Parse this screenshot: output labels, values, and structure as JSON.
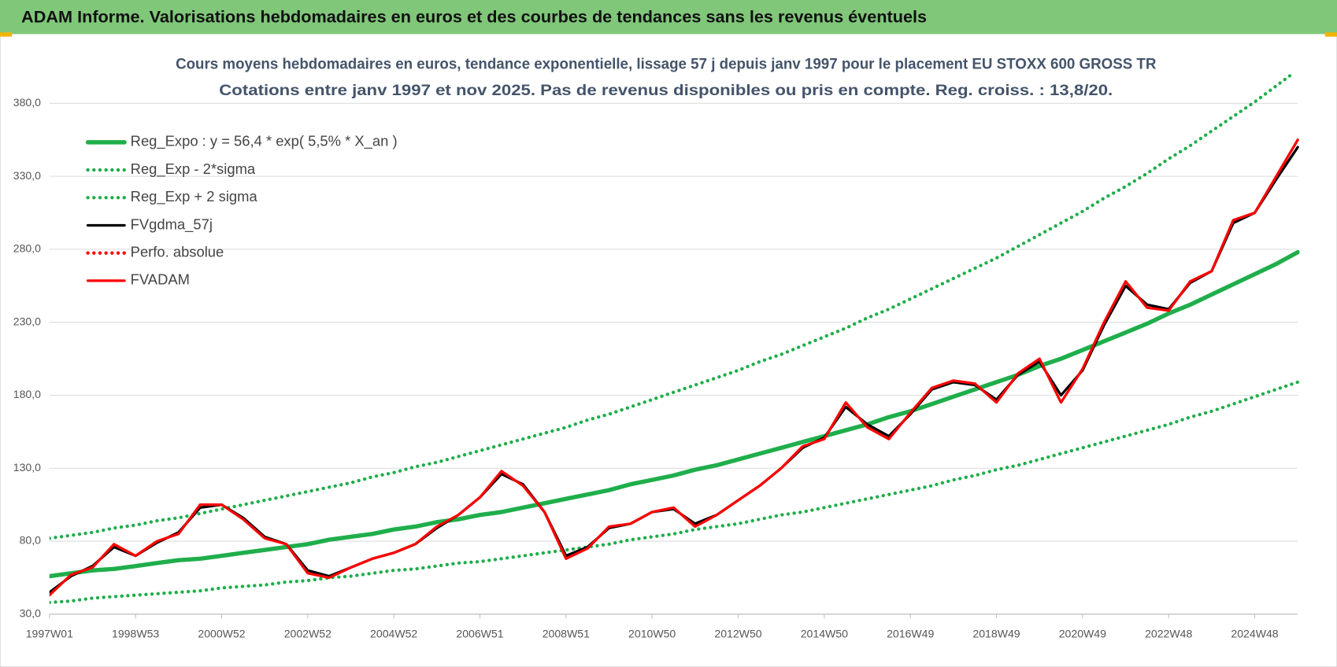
{
  "header": {
    "title": "ADAM Informe. Valorisations hebdomadaires en euros et des courbes de tendances sans les revenus éventuels"
  },
  "chart_data": {
    "type": "line",
    "title": "Cours moyens hebdomadaires en euros, tendance exponentielle, lissage 57 j depuis janv 1997 pour le placement EU STOXX 600 GROSS TR",
    "subtitle": "Cotations entre janv 1997 et nov 2025. Pas de revenus disponibles ou pris en compte. Reg. croiss. : 13,8/20.",
    "categories": [
      "1997W01",
      null,
      null,
      null,
      "1998W53",
      null,
      null,
      null,
      "2000W52",
      null,
      null,
      null,
      "2002W52",
      null,
      null,
      null,
      "2004W52",
      null,
      null,
      null,
      "2006W51",
      null,
      null,
      null,
      "2008W51",
      null,
      null,
      null,
      "2010W50",
      null,
      null,
      null,
      "2012W50",
      null,
      null,
      null,
      "2014W50",
      null,
      null,
      null,
      "2016W49",
      null,
      null,
      null,
      "2018W49",
      null,
      null,
      null,
      "2020W49",
      null,
      null,
      null,
      "2022W48",
      null,
      null,
      null,
      "2024W48",
      null,
      null
    ],
    "ylim": [
      30,
      400
    ],
    "yticks": [
      {
        "value": 30,
        "label": "30,0"
      },
      {
        "value": 80,
        "label": "80,0"
      },
      {
        "value": 130,
        "label": "130,0"
      },
      {
        "value": 180,
        "label": "180,0"
      },
      {
        "value": 230,
        "label": "230,0"
      },
      {
        "value": 280,
        "label": "280,0"
      },
      {
        "value": 330,
        "label": "330,0"
      },
      {
        "value": 380,
        "label": "380,0"
      }
    ],
    "grid": true,
    "legend": "upper left",
    "series": [
      {
        "name": "Reg_Expo : y = 56,4 * exp( 5,5% *  X_an )",
        "color": "#1fae4b",
        "style": "solid",
        "values": [
          56,
          58,
          60,
          61,
          63,
          65,
          67,
          68,
          70,
          72,
          74,
          76,
          78,
          81,
          83,
          85,
          88,
          90,
          93,
          95,
          98,
          100,
          103,
          106,
          109,
          112,
          115,
          119,
          122,
          125,
          129,
          132,
          136,
          140,
          144,
          148,
          152,
          156,
          160,
          165,
          169,
          174,
          179,
          184,
          189,
          194,
          200,
          205,
          211,
          217,
          223,
          229,
          236,
          242,
          249,
          256,
          263,
          270,
          278
        ]
      },
      {
        "name": "Reg_Exp - 2*sigma",
        "color": "#1fae4b",
        "style": "dotted",
        "values": [
          38,
          39,
          41,
          42,
          43,
          44,
          45,
          46,
          48,
          49,
          50,
          52,
          53,
          55,
          56,
          58,
          60,
          61,
          63,
          65,
          66,
          68,
          70,
          72,
          74,
          76,
          78,
          81,
          83,
          85,
          88,
          90,
          92,
          95,
          98,
          100,
          103,
          106,
          109,
          112,
          115,
          118,
          122,
          125,
          129,
          132,
          136,
          140,
          144,
          148,
          152,
          156,
          160,
          165,
          169,
          174,
          179,
          184,
          189
        ]
      },
      {
        "name": "Reg_Exp + 2 sigma",
        "color": "#1fae4b",
        "style": "dotted",
        "values": [
          82,
          84,
          86,
          89,
          91,
          94,
          96,
          99,
          102,
          105,
          108,
          111,
          114,
          117,
          120,
          124,
          127,
          131,
          134,
          138,
          142,
          146,
          150,
          154,
          158,
          163,
          167,
          172,
          177,
          182,
          187,
          192,
          197,
          203,
          208,
          214,
          220,
          226,
          233,
          239,
          246,
          253,
          260,
          267,
          274,
          282,
          290,
          298,
          306,
          315,
          323,
          332,
          342,
          351,
          361,
          371,
          381,
          392,
          403
        ]
      },
      {
        "name": "FVgdma_57j",
        "color": "#000000",
        "style": "solid",
        "values": [
          45,
          56,
          63,
          76,
          70,
          79,
          86,
          103,
          105,
          96,
          83,
          78,
          60,
          56,
          62,
          68,
          72,
          78,
          89,
          98,
          110,
          126,
          119,
          100,
          70,
          76,
          89,
          92,
          100,
          102,
          92,
          98,
          108,
          118,
          130,
          144,
          151,
          172,
          160,
          152,
          167,
          184,
          189,
          187,
          177,
          194,
          203,
          180,
          197,
          228,
          255,
          242,
          239,
          257,
          265,
          298,
          305,
          328,
          350
        ]
      },
      {
        "name": "Perfo. absolue",
        "color": "#ff0000",
        "style": "dotted",
        "values": [
          null,
          null,
          null,
          null,
          null,
          null,
          null,
          null,
          null,
          null,
          null,
          null,
          null,
          null,
          null,
          null,
          null,
          null,
          null,
          null,
          null,
          null,
          null,
          null,
          null,
          null,
          null,
          null,
          null,
          null,
          null,
          null,
          null,
          null,
          null,
          null,
          null,
          null,
          null,
          null,
          null,
          null,
          null,
          null,
          null,
          null,
          null,
          null,
          null,
          null,
          null,
          null,
          null,
          null,
          null,
          null,
          null,
          null,
          null
        ]
      },
      {
        "name": "FVADAM",
        "color": "#ff0000",
        "style": "solid",
        "values": [
          43,
          57,
          62,
          78,
          70,
          80,
          85,
          105,
          105,
          95,
          82,
          78,
          58,
          55,
          62,
          68,
          72,
          78,
          90,
          98,
          110,
          128,
          118,
          100,
          68,
          75,
          90,
          92,
          100,
          103,
          90,
          98,
          108,
          118,
          130,
          145,
          150,
          175,
          158,
          150,
          168,
          185,
          190,
          188,
          175,
          195,
          205,
          175,
          198,
          230,
          258,
          240,
          238,
          258,
          265,
          300,
          305,
          330,
          355
        ]
      }
    ]
  }
}
